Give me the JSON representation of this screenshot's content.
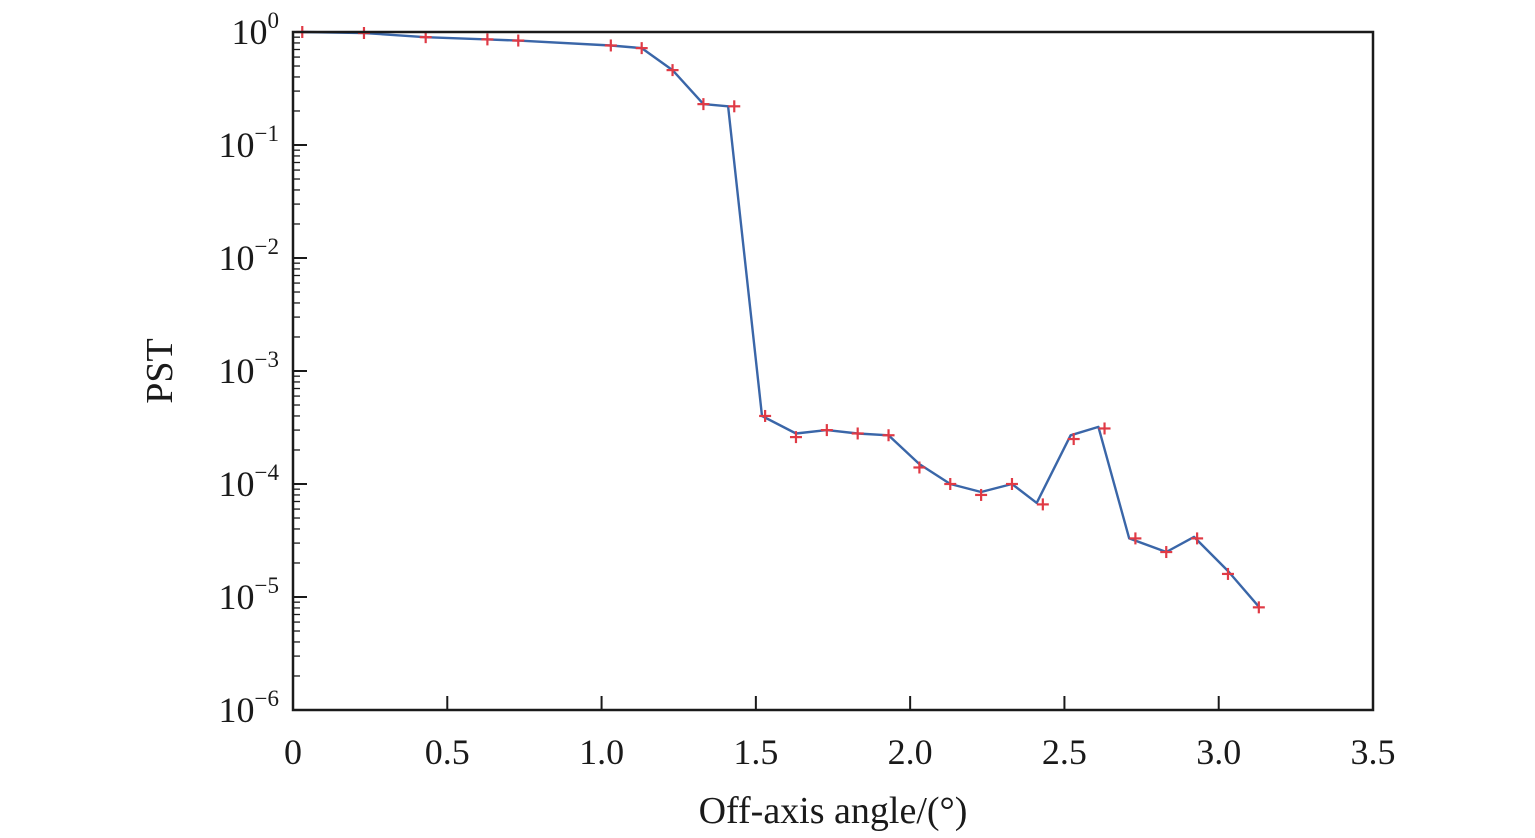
{
  "chart_data": {
    "type": "line",
    "title": "",
    "xlabel": "Off-axis angle/(°)",
    "ylabel": "PST",
    "xlim": [
      0,
      3.5
    ],
    "ylim": [
      1e-06,
      1
    ],
    "yscale": "log",
    "grid": false,
    "x_ticks": [
      {
        "value": 0,
        "label": "0"
      },
      {
        "value": 0.5,
        "label": "0.5"
      },
      {
        "value": 1.0,
        "label": "1.0"
      },
      {
        "value": 1.5,
        "label": "1.5"
      },
      {
        "value": 2.0,
        "label": "2.0"
      },
      {
        "value": 2.5,
        "label": "2.5"
      },
      {
        "value": 3.0,
        "label": "3.0"
      },
      {
        "value": 3.5,
        "label": "3.5"
      }
    ],
    "y_ticks": [
      {
        "value": 1,
        "base": "10",
        "exp": "0"
      },
      {
        "value": 0.1,
        "base": "10",
        "exp": "−1"
      },
      {
        "value": 0.01,
        "base": "10",
        "exp": "−2"
      },
      {
        "value": 0.001,
        "base": "10",
        "exp": "−3"
      },
      {
        "value": 0.0001,
        "base": "10",
        "exp": "−4"
      },
      {
        "value": 1e-05,
        "base": "10",
        "exp": "−5"
      },
      {
        "value": 1e-06,
        "base": "10",
        "exp": "−6"
      }
    ],
    "series": [
      {
        "style": "line",
        "color": "#3a66a8",
        "x": [
          0.03,
          0.23,
          0.43,
          0.63,
          0.73,
          1.03,
          1.13,
          1.23,
          1.33,
          1.41,
          1.52,
          1.63,
          1.73,
          1.83,
          1.93,
          2.03,
          2.13,
          2.23,
          2.33,
          2.41,
          2.52,
          2.61,
          2.71,
          2.83,
          2.92,
          3.03,
          3.13
        ],
        "y": [
          1.0,
          0.98,
          0.9,
          0.86,
          0.84,
          0.76,
          0.72,
          0.46,
          0.23,
          0.22,
          0.0004,
          0.00028,
          0.0003,
          0.00028,
          0.00027,
          0.00015,
          0.0001,
          8.5e-05,
          0.0001,
          6.8e-05,
          0.00027,
          0.00032,
          3.3e-05,
          2.5e-05,
          3.4e-05,
          1.7e-05,
          8.2e-06
        ]
      },
      {
        "style": "markers",
        "marker": "+",
        "color": "#e03a45",
        "x": [
          0.03,
          0.23,
          0.43,
          0.63,
          0.73,
          1.03,
          1.13,
          1.23,
          1.33,
          1.43,
          1.53,
          1.63,
          1.73,
          1.83,
          1.93,
          2.03,
          2.13,
          2.23,
          2.33,
          2.43,
          2.53,
          2.63,
          2.73,
          2.83,
          2.93,
          3.03,
          3.13
        ],
        "y": [
          1.0,
          0.98,
          0.9,
          0.86,
          0.84,
          0.76,
          0.72,
          0.46,
          0.23,
          0.22,
          0.0004,
          0.00026,
          0.0003,
          0.00028,
          0.00027,
          0.00014,
          0.0001,
          8e-05,
          0.0001,
          6.6e-05,
          0.00025,
          0.00031,
          3.3e-05,
          2.5e-05,
          3.3e-05,
          1.6e-05,
          8.1e-06
        ]
      }
    ]
  }
}
